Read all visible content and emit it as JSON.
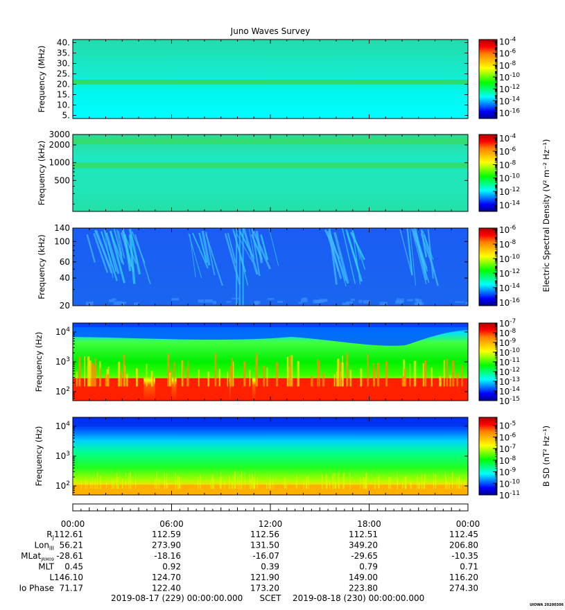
{
  "title": "Juno Waves Survey",
  "footer_stamp": "UIOWA 20200306",
  "colors": {
    "colormap": [
      "#00008c",
      "#0000ff",
      "#0080ff",
      "#00ffff",
      "#00ff80",
      "#00ff00",
      "#80ff00",
      "#ffff00",
      "#ffc000",
      "#ff8000",
      "#ff0000",
      "#b00000"
    ],
    "field_cyan": "#12f2d8",
    "field_blue": "#1a60f2",
    "field_green": "#22d644",
    "field_red": "#ff2000"
  },
  "chart_data": [
    {
      "type": "heatmap",
      "ylabel": "Frequency (MHz)",
      "yscale": "linear",
      "ylim": [
        3.5,
        41.5
      ],
      "yticks": [
        {
          "v": 5,
          "label": "5."
        },
        {
          "v": 10,
          "label": "10."
        },
        {
          "v": 15,
          "label": "15."
        },
        {
          "v": 20,
          "label": "20."
        },
        {
          "v": 25,
          "label": "25."
        },
        {
          "v": 30,
          "label": "30."
        },
        {
          "v": 35,
          "label": "35."
        },
        {
          "v": 40,
          "label": "40."
        }
      ],
      "colorbar": {
        "labels": [
          {
            "e": "-4"
          },
          {
            "e": "-6"
          },
          {
            "e": "-8"
          },
          {
            "e": "-10"
          },
          {
            "e": "-12"
          },
          {
            "e": "-14"
          },
          {
            "e": "-16"
          }
        ],
        "range": [
          -17,
          -3.7
        ]
      },
      "dominant_level": "1e-13",
      "features": [
        {
          "kind": "band",
          "frequency": 21,
          "level": "1e-12"
        }
      ]
    },
    {
      "type": "heatmap",
      "ylabel": "Frequency (kHz)",
      "yscale": "log",
      "ylim": [
        150,
        3000
      ],
      "yticks": [
        {
          "v": 500,
          "label": "500"
        },
        {
          "v": 1000,
          "label": "1000"
        },
        {
          "v": 2000,
          "label": "2000"
        },
        {
          "v": 3000,
          "label": "3000"
        }
      ],
      "colorbar": {
        "labels": [
          {
            "e": "-4"
          },
          {
            "e": "-6"
          },
          {
            "e": "-8"
          },
          {
            "e": "-10"
          },
          {
            "e": "-12"
          },
          {
            "e": "-14"
          }
        ],
        "range": [
          -15,
          -3.5
        ]
      },
      "dominant_level": "1e-13",
      "features": [
        {
          "kind": "band",
          "frequency": 900,
          "level": "1e-12"
        },
        {
          "kind": "band",
          "frequency": 2300,
          "level": "1e-12"
        }
      ]
    },
    {
      "type": "heatmap",
      "ylabel": "Frequency (kHz)",
      "yscale": "log",
      "ylim": [
        20,
        140
      ],
      "yticks": [
        {
          "v": 20,
          "label": "20"
        },
        {
          "v": 40,
          "label": "40"
        },
        {
          "v": 60,
          "label": "60"
        },
        {
          "v": 100,
          "label": "100"
        },
        {
          "v": 140,
          "label": "140"
        }
      ],
      "colorbar": {
        "labels": [
          {
            "e": "-6"
          },
          {
            "e": "-8"
          },
          {
            "e": "-10"
          },
          {
            "e": "-12"
          },
          {
            "e": "-14"
          },
          {
            "e": "-16"
          }
        ],
        "range": [
          -16.5,
          -5.8
        ]
      },
      "dominant_level": "1e-14",
      "features": [
        {
          "kind": "bursts",
          "hours": [
            1.5,
            2.5,
            3.3,
            7.6,
            9.8,
            11.3,
            15.7,
            16.5,
            20.2,
            21.2
          ],
          "level": "1e-12"
        }
      ]
    },
    {
      "type": "heatmap",
      "ylabel": "Frequency (Hz)",
      "yscale": "log",
      "ylim": [
        50,
        20000
      ],
      "yticks": [
        {
          "v": 100,
          "e": "2"
        },
        {
          "v": 1000,
          "e": "3"
        },
        {
          "v": 10000,
          "e": "4"
        }
      ],
      "colorbar": {
        "labels": [
          {
            "e": "-7"
          },
          {
            "e": "-8"
          },
          {
            "e": "-9"
          },
          {
            "e": "-10"
          },
          {
            "e": "-11"
          },
          {
            "e": "-12"
          },
          {
            "e": "-13"
          },
          {
            "e": "-14"
          },
          {
            "e": "-15"
          }
        ],
        "range": [
          -15,
          -7
        ]
      },
      "dominant_level": "1e-11",
      "features": [
        {
          "kind": "band",
          "frequency": 150,
          "level": "1e-8"
        },
        {
          "kind": "band",
          "frequency": 8000,
          "level": "1e-13"
        }
      ]
    },
    {
      "type": "heatmap",
      "ylabel": "Frequency (Hz)",
      "yscale": "log",
      "ylim": [
        50,
        20000
      ],
      "yticks": [
        {
          "v": 100,
          "e": "2"
        },
        {
          "v": 1000,
          "e": "3"
        },
        {
          "v": 10000,
          "e": "4"
        }
      ],
      "colorbar": {
        "labels": [
          {
            "e": "-5"
          },
          {
            "e": "-6"
          },
          {
            "e": "-7"
          },
          {
            "e": "-8"
          },
          {
            "e": "-9"
          },
          {
            "e": "-10"
          },
          {
            "e": "-11"
          }
        ],
        "range": [
          -11,
          -4.3
        ]
      },
      "dominant_level": "1e-9",
      "features": [
        {
          "kind": "band",
          "frequency": 80,
          "level": "1e-7"
        },
        {
          "kind": "band",
          "frequency": 15000,
          "level": "1e-11"
        }
      ]
    }
  ],
  "colorbar_titles": {
    "electric": "Electric Spectral Density (V² m⁻² Hz⁻¹)",
    "magnetic": "B SD (nT² Hz⁻¹)"
  },
  "time_axis": {
    "hours": [
      0,
      6,
      12,
      18,
      24
    ],
    "labels": [
      "00:00",
      "06:00",
      "12:00",
      "18:00",
      "00:00"
    ]
  },
  "ephemeris": [
    {
      "label": "R",
      "sub": "J",
      "values": [
        "112.61",
        "112.59",
        "112.56",
        "112.51",
        "112.45"
      ]
    },
    {
      "label": "Lon",
      "sub": "III",
      "values": [
        "56.21",
        "273.90",
        "131.50",
        "349.20",
        "206.80"
      ]
    },
    {
      "label": "MLat",
      "sub": "JRM09",
      "values": [
        "-28.61",
        "-18.16",
        "-16.07",
        "-29.65",
        "-10.35"
      ]
    },
    {
      "label": "MLT",
      "sub": "",
      "values": [
        "0.45",
        "0.92",
        "0.39",
        "0.79",
        "0.71"
      ]
    },
    {
      "label": "L",
      "sub": "",
      "values": [
        "146.10",
        "124.70",
        "121.90",
        "149.00",
        "116.20"
      ]
    },
    {
      "label": "Io Phase",
      "sub": "",
      "values": [
        "71.17",
        "122.40",
        "173.20",
        "223.80",
        "274.30"
      ]
    }
  ],
  "scet_line": {
    "start": "2019-08-17 (229) 00:00:00.000",
    "middle": "SCET",
    "end": "2019-08-18 (230) 00:00:00.000"
  }
}
